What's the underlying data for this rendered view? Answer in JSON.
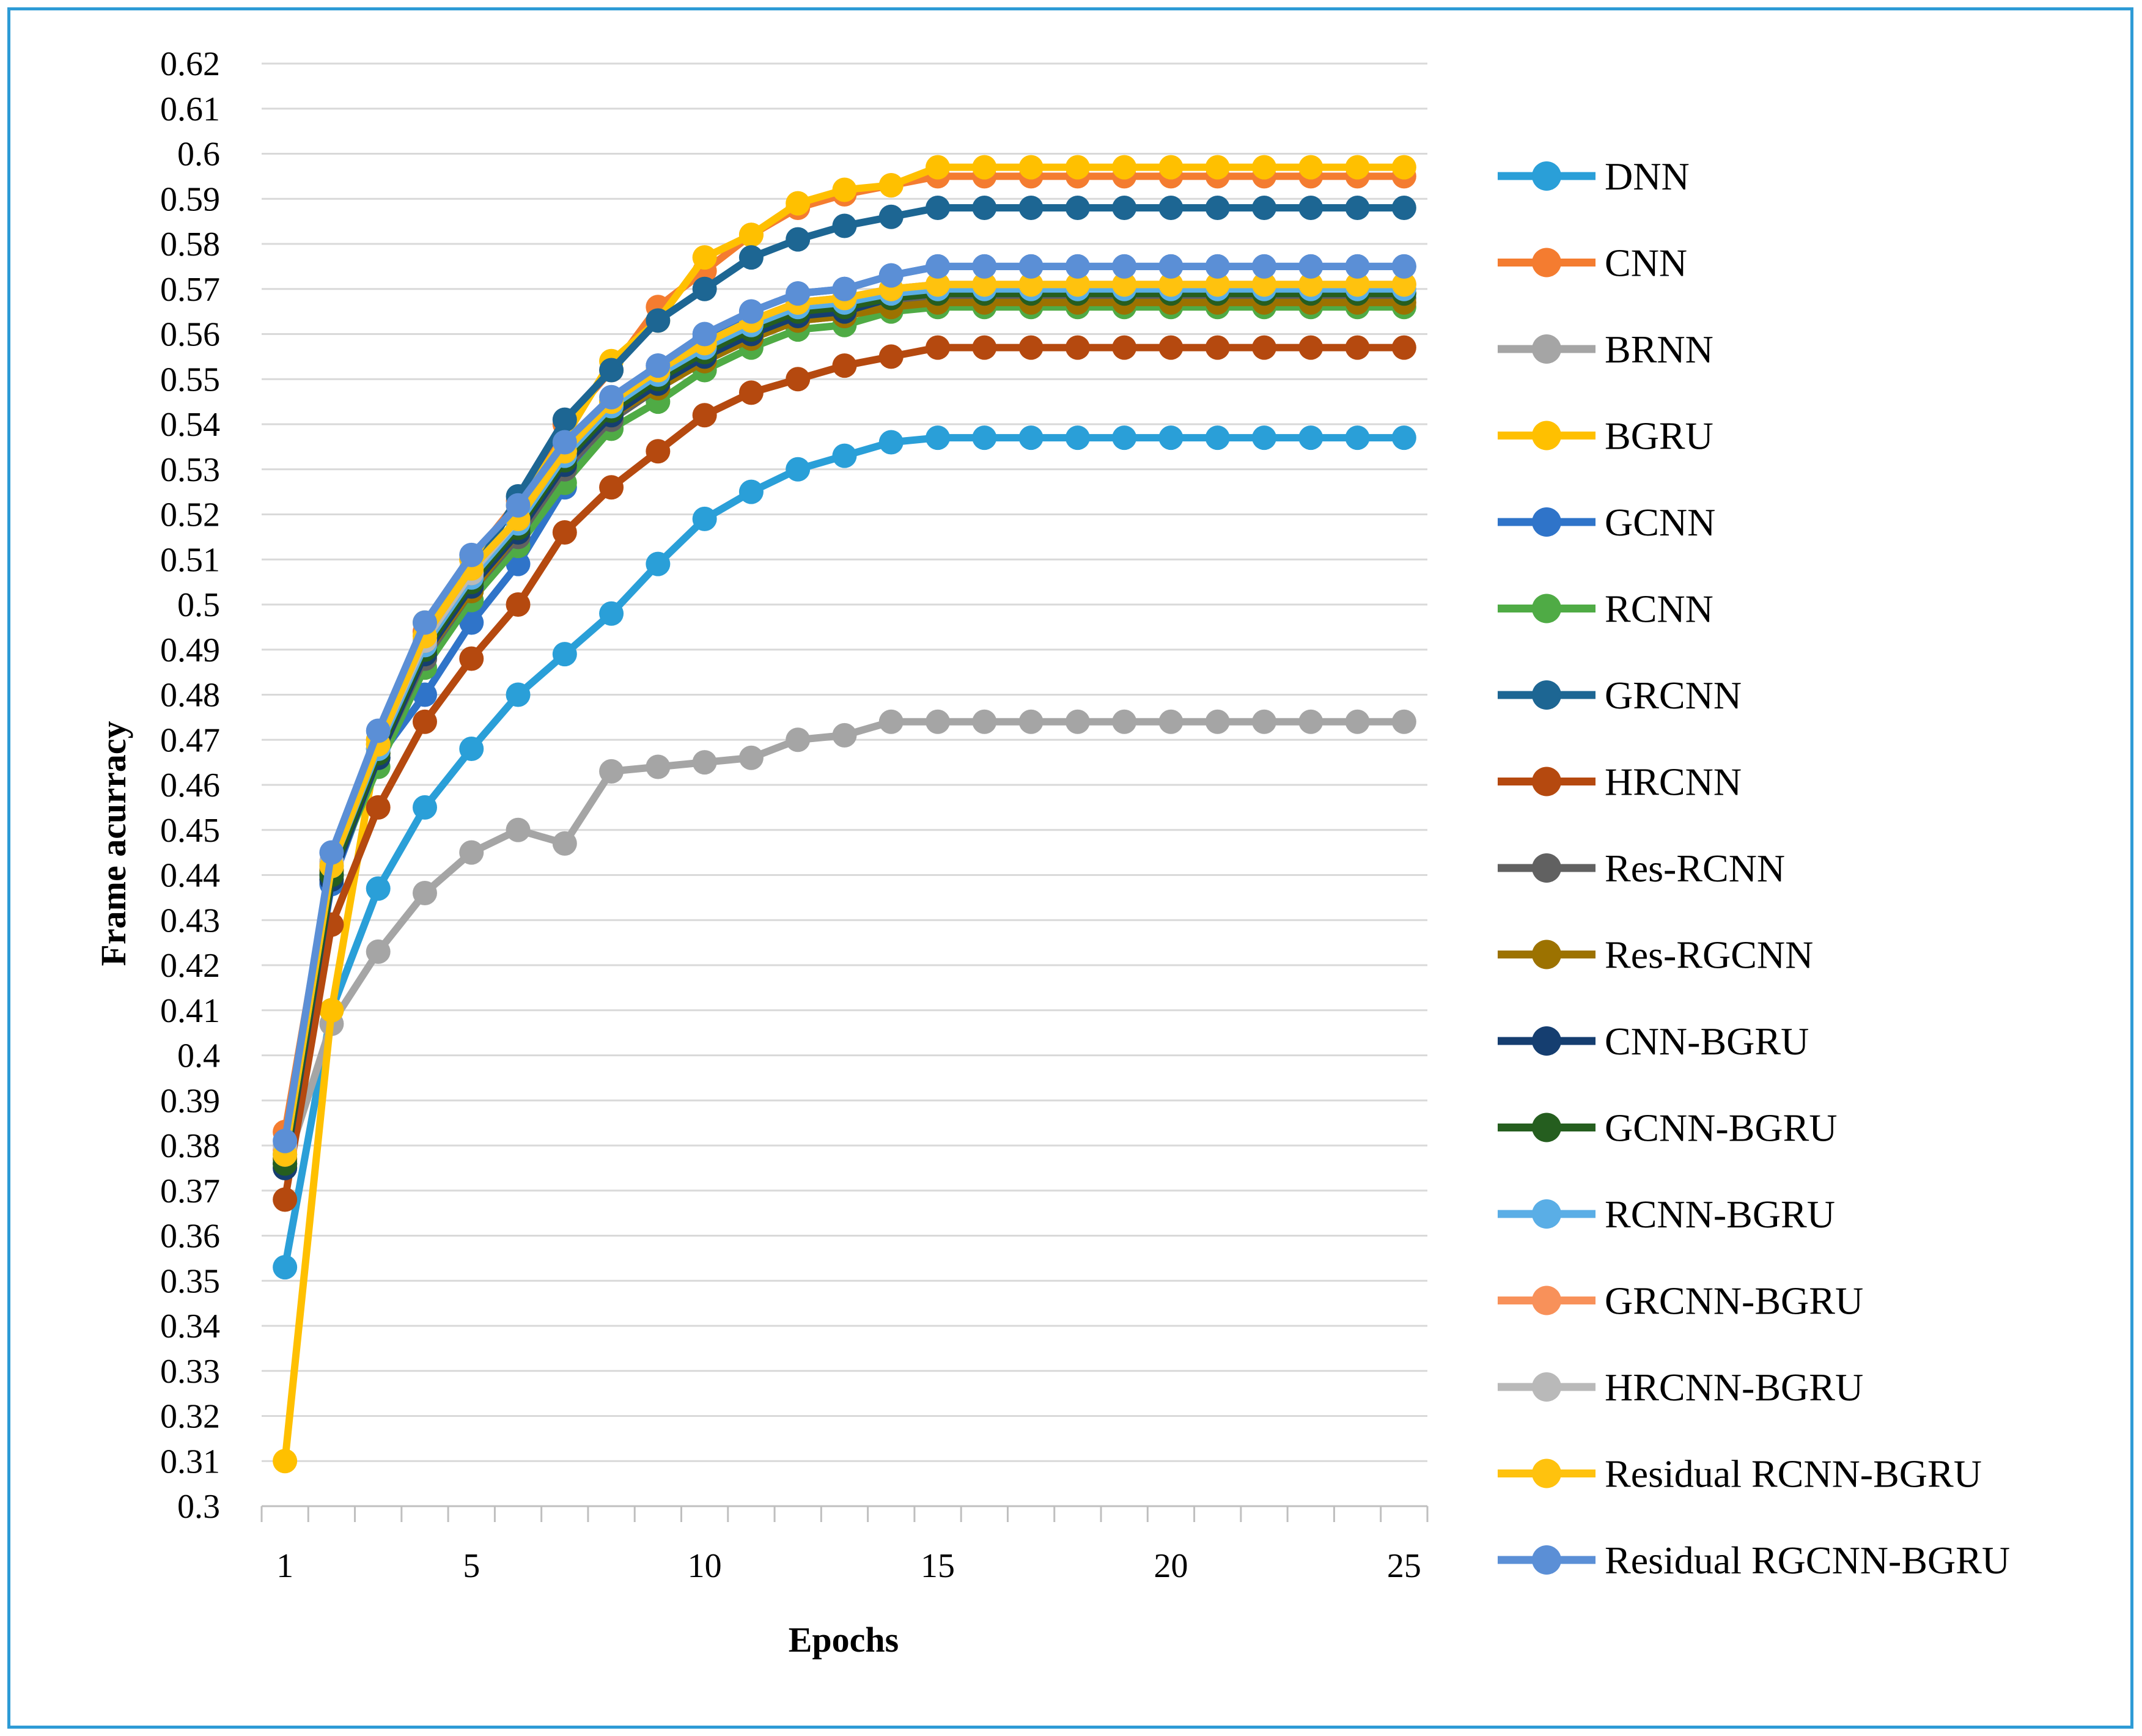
{
  "chart_data": {
    "type": "line",
    "title": "",
    "xlabel": "Epochs",
    "ylabel": "Frame  acurracy",
    "x": [
      1,
      2,
      3,
      4,
      5,
      6,
      7,
      8,
      9,
      10,
      11,
      12,
      13,
      14,
      15,
      16,
      17,
      18,
      19,
      20,
      21,
      22,
      23,
      24,
      25
    ],
    "x_tick_labels": [
      "1",
      "5",
      "10",
      "15",
      "20",
      "25"
    ],
    "x_tick_values": [
      1,
      5,
      10,
      15,
      20,
      25
    ],
    "ylim": [
      0.3,
      0.62
    ],
    "y_step": 0.01,
    "y_tick_labels": [
      "0.3",
      "0.31",
      "0.32",
      "0.33",
      "0.34",
      "0.35",
      "0.36",
      "0.37",
      "0.38",
      "0.39",
      "0.4",
      "0.41",
      "0.42",
      "0.43",
      "0.44",
      "0.45",
      "0.46",
      "0.47",
      "0.48",
      "0.49",
      "0.5",
      "0.51",
      "0.52",
      "0.53",
      "0.54",
      "0.55",
      "0.56",
      "0.57",
      "0.58",
      "0.59",
      "0.6",
      "0.61",
      "0.62"
    ],
    "grid": true,
    "legend_position": "right",
    "series": [
      {
        "name": "DNN",
        "color": "#2a9fd8",
        "values": [
          0.353,
          0.41,
          0.437,
          0.455,
          0.468,
          0.48,
          0.489,
          0.498,
          0.509,
          0.519,
          0.525,
          0.53,
          0.533,
          0.536,
          0.537,
          0.537,
          0.537,
          0.537,
          0.537,
          0.537,
          0.537,
          0.537,
          0.537,
          0.537,
          0.537
        ]
      },
      {
        "name": "CNN",
        "color": "#f47c30",
        "values": [
          0.383,
          0.443,
          0.47,
          0.494,
          0.51,
          0.523,
          0.54,
          0.552,
          0.566,
          0.574,
          0.582,
          0.588,
          0.591,
          0.593,
          0.595,
          0.595,
          0.595,
          0.595,
          0.595,
          0.595,
          0.595,
          0.595,
          0.595,
          0.595,
          0.595
        ]
      },
      {
        "name": "BRNN",
        "color": "#a5a5a5",
        "values": [
          0.375,
          0.407,
          0.423,
          0.436,
          0.445,
          0.45,
          0.447,
          0.463,
          0.464,
          0.465,
          0.466,
          0.47,
          0.471,
          0.474,
          0.474,
          0.474,
          0.474,
          0.474,
          0.474,
          0.474,
          0.474,
          0.474,
          0.474,
          0.474,
          0.474
        ]
      },
      {
        "name": "BGRU",
        "color": "#ffc000",
        "values": [
          0.31,
          0.41,
          0.47,
          0.496,
          0.51,
          0.522,
          0.537,
          0.554,
          0.563,
          0.577,
          0.582,
          0.589,
          0.592,
          0.593,
          0.597,
          0.597,
          0.597,
          0.597,
          0.597,
          0.597,
          0.597,
          0.597,
          0.597,
          0.597,
          0.597
        ]
      },
      {
        "name": "GCNN",
        "color": "#2f74c9",
        "values": [
          0.376,
          0.438,
          0.466,
          0.48,
          0.496,
          0.509,
          0.526,
          0.545,
          0.553,
          0.559,
          0.565,
          0.569,
          0.57,
          0.573,
          0.575,
          0.575,
          0.575,
          0.575,
          0.575,
          0.575,
          0.575,
          0.575,
          0.575,
          0.575,
          0.575
        ]
      },
      {
        "name": "RCNN",
        "color": "#4fab45",
        "values": [
          0.378,
          0.44,
          0.464,
          0.486,
          0.501,
          0.513,
          0.527,
          0.539,
          0.545,
          0.552,
          0.557,
          0.561,
          0.562,
          0.565,
          0.566,
          0.566,
          0.566,
          0.566,
          0.566,
          0.566,
          0.566,
          0.566,
          0.566,
          0.566,
          0.566
        ]
      },
      {
        "name": "GRCNN",
        "color": "#1d6693",
        "values": [
          0.377,
          0.44,
          0.468,
          0.488,
          0.506,
          0.524,
          0.541,
          0.552,
          0.563,
          0.57,
          0.577,
          0.581,
          0.584,
          0.586,
          0.588,
          0.588,
          0.588,
          0.588,
          0.588,
          0.588,
          0.588,
          0.588,
          0.588,
          0.588,
          0.588
        ]
      },
      {
        "name": "HRCNN",
        "color": "#b5490f",
        "values": [
          0.368,
          0.429,
          0.455,
          0.474,
          0.488,
          0.5,
          0.516,
          0.526,
          0.534,
          0.542,
          0.547,
          0.55,
          0.553,
          0.555,
          0.557,
          0.557,
          0.557,
          0.557,
          0.557,
          0.557,
          0.557,
          0.557,
          0.557,
          0.557,
          0.557
        ]
      },
      {
        "name": "Res-RCNN",
        "color": "#616161",
        "values": [
          0.376,
          0.441,
          0.466,
          0.488,
          0.503,
          0.515,
          0.53,
          0.541,
          0.548,
          0.554,
          0.559,
          0.563,
          0.564,
          0.567,
          0.568,
          0.568,
          0.568,
          0.568,
          0.568,
          0.568,
          0.568,
          0.568,
          0.568,
          0.568,
          0.568
        ]
      },
      {
        "name": "Res-RGCNN",
        "color": "#9c7200",
        "values": [
          0.377,
          0.441,
          0.467,
          0.489,
          0.503,
          0.516,
          0.531,
          0.542,
          0.548,
          0.554,
          0.559,
          0.563,
          0.564,
          0.566,
          0.567,
          0.567,
          0.567,
          0.567,
          0.567,
          0.567,
          0.567,
          0.567,
          0.567,
          0.567,
          0.567
        ]
      },
      {
        "name": "CNN-BGRU",
        "color": "#153e70",
        "values": [
          0.375,
          0.439,
          0.466,
          0.489,
          0.504,
          0.516,
          0.531,
          0.542,
          0.549,
          0.555,
          0.56,
          0.564,
          0.565,
          0.568,
          0.569,
          0.569,
          0.569,
          0.569,
          0.569,
          0.569,
          0.569,
          0.569,
          0.569,
          0.569,
          0.569
        ]
      },
      {
        "name": "GCNN-BGRU",
        "color": "#255e1f",
        "values": [
          0.376,
          0.44,
          0.467,
          0.49,
          0.505,
          0.517,
          0.532,
          0.543,
          0.55,
          0.556,
          0.561,
          0.565,
          0.566,
          0.568,
          0.569,
          0.569,
          0.569,
          0.569,
          0.569,
          0.569,
          0.569,
          0.569,
          0.569,
          0.569,
          0.569
        ]
      },
      {
        "name": "RCNN-BGRU",
        "color": "#5aaee6",
        "values": [
          0.378,
          0.442,
          0.468,
          0.491,
          0.506,
          0.518,
          0.533,
          0.544,
          0.551,
          0.557,
          0.562,
          0.566,
          0.567,
          0.569,
          0.57,
          0.57,
          0.57,
          0.57,
          0.57,
          0.57,
          0.57,
          0.57,
          0.57,
          0.57,
          0.57
        ]
      },
      {
        "name": "GRCNN-BGRU",
        "color": "#f8915a",
        "values": [
          0.379,
          0.443,
          0.469,
          0.492,
          0.507,
          0.519,
          0.534,
          0.545,
          0.552,
          0.558,
          0.563,
          0.567,
          0.568,
          0.57,
          0.571,
          0.571,
          0.571,
          0.571,
          0.571,
          0.571,
          0.571,
          0.571,
          0.571,
          0.571,
          0.571
        ]
      },
      {
        "name": "HRCNN-BGRU",
        "color": "#b9b9b9",
        "values": [
          0.38,
          0.443,
          0.469,
          0.492,
          0.507,
          0.519,
          0.534,
          0.545,
          0.552,
          0.558,
          0.563,
          0.567,
          0.568,
          0.57,
          0.571,
          0.571,
          0.571,
          0.571,
          0.571,
          0.571,
          0.571,
          0.571,
          0.571,
          0.571,
          0.571
        ]
      },
      {
        "name": "Residual RCNN-BGRU",
        "color": "#ffc20e",
        "values": [
          0.378,
          0.442,
          0.469,
          0.493,
          0.508,
          0.519,
          0.534,
          0.545,
          0.552,
          0.558,
          0.563,
          0.567,
          0.568,
          0.57,
          0.571,
          0.571,
          0.571,
          0.571,
          0.571,
          0.571,
          0.571,
          0.571,
          0.571,
          0.571,
          0.571
        ]
      },
      {
        "name": "Residual RGCNN-BGRU",
        "color": "#5b8fd6",
        "values": [
          0.381,
          0.445,
          0.472,
          0.496,
          0.511,
          0.522,
          0.536,
          0.546,
          0.553,
          0.56,
          0.565,
          0.569,
          0.57,
          0.573,
          0.575,
          0.575,
          0.575,
          0.575,
          0.575,
          0.575,
          0.575,
          0.575,
          0.575,
          0.575,
          0.575
        ]
      }
    ]
  }
}
